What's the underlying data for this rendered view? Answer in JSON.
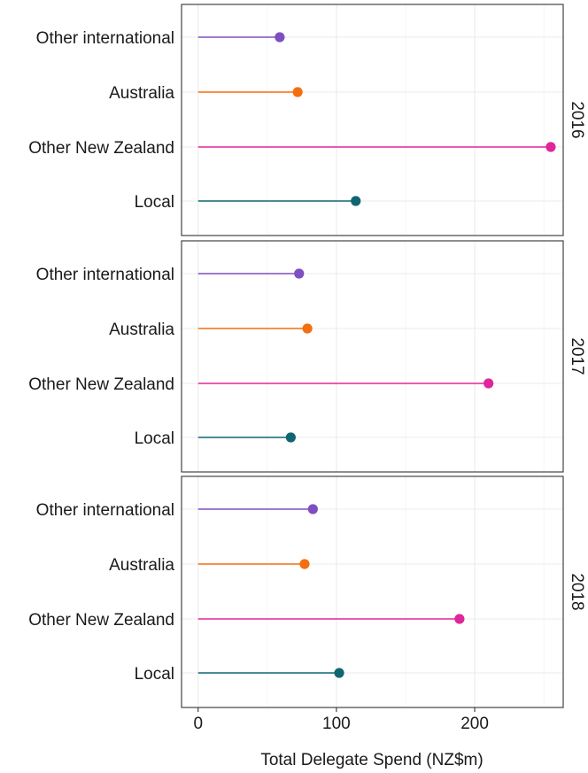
{
  "chart_data": {
    "type": "lollipop",
    "orientation": "horizontal",
    "facet_variable_values": [
      "2016",
      "2017",
      "2018"
    ],
    "categories": [
      "Other international",
      "Australia",
      "Other New Zealand",
      "Local"
    ],
    "category_colors": {
      "Other international": "#7e4fc0",
      "Australia": "#f46f0f",
      "Other New Zealand": "#e0269a",
      "Local": "#0f6672"
    },
    "panels": [
      {
        "facet": "2016",
        "values": [
          59,
          72,
          255,
          114
        ]
      },
      {
        "facet": "2017",
        "values": [
          73,
          79,
          210,
          67
        ]
      },
      {
        "facet": "2018",
        "values": [
          83,
          77,
          189,
          102
        ]
      }
    ],
    "xlabel": "Total Delegate Spend (NZ$m)",
    "ylabel": "",
    "xlim": [
      -12,
      264
    ],
    "xticks": [
      0,
      100,
      200
    ],
    "grid": true,
    "legend": "none"
  }
}
